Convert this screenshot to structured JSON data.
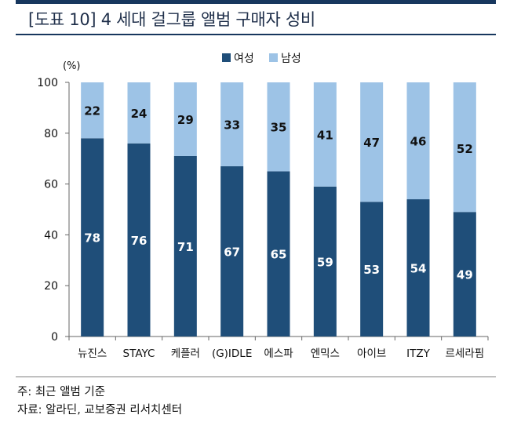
{
  "page": {
    "title": "[도표 10] 4 세대 걸그룹 앨범 구매자 성비",
    "note": "주: 최근 앨범 기준",
    "source": "자료: 알라딘, 교보증권 리서치센터"
  },
  "colors": {
    "female": "#1f4e79",
    "male": "#9dc3e6",
    "rule": "#17375e"
  },
  "chart_data": {
    "type": "bar",
    "stacked": true,
    "title": "",
    "xlabel": "",
    "ylabel": "(%)",
    "ylim": [
      0,
      100
    ],
    "yticks": [
      0,
      20,
      40,
      60,
      80,
      100
    ],
    "grid": false,
    "legend": "top",
    "categories": [
      "뉴진스",
      "STAYC",
      "케플러",
      "(G)IDLE",
      "에스파",
      "엔믹스",
      "아이브",
      "ITZY",
      "르세라핌"
    ],
    "series": [
      {
        "name": "여성",
        "values": [
          78,
          76,
          71,
          67,
          65,
          59,
          53,
          54,
          49
        ]
      },
      {
        "name": "남성",
        "values": [
          22,
          24,
          29,
          33,
          35,
          41,
          47,
          46,
          52
        ]
      }
    ]
  }
}
